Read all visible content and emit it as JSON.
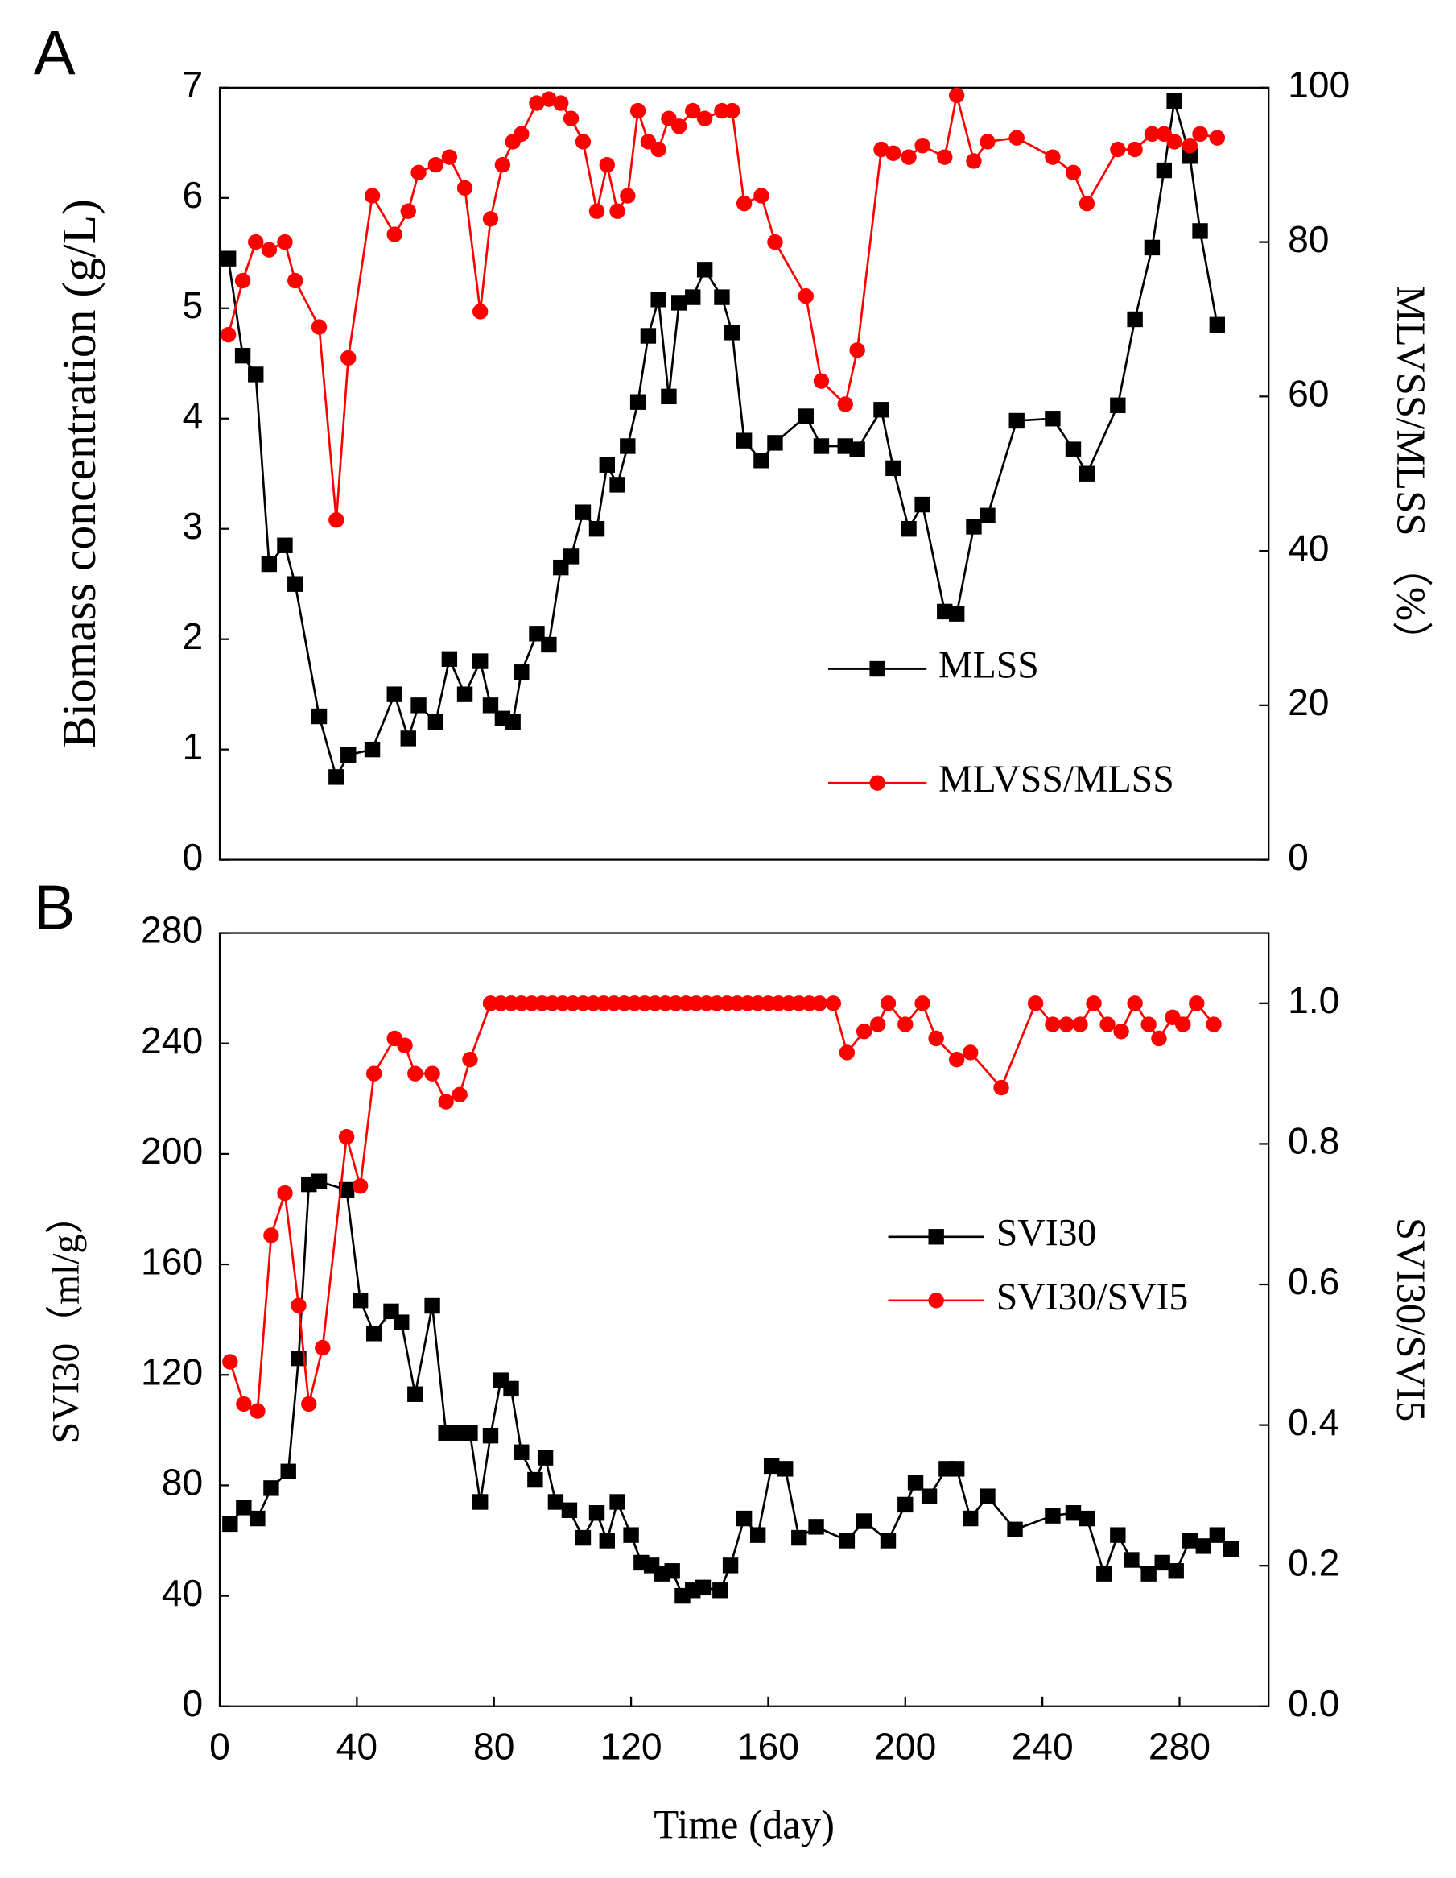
{
  "chart_data": [
    {
      "type": "line",
      "panel": "A",
      "ylabel": "Biomass concentration (g/L)",
      "y2label": "MLVSS/MLSS （%）",
      "xlim": [
        0,
        306
      ],
      "ylim": [
        0,
        7
      ],
      "yticks": [
        0,
        1,
        2,
        3,
        4,
        5,
        6,
        7
      ],
      "y2lim": [
        0,
        100
      ],
      "y2ticks": [
        0,
        20,
        40,
        60,
        80,
        100
      ],
      "legend": "lower right",
      "x": [
        2.5,
        6.7,
        10.5,
        14.4,
        19,
        22,
        29,
        34,
        37.5,
        44.5,
        51,
        55,
        58,
        63,
        67,
        71.5,
        76,
        79,
        82.5,
        85.5,
        88,
        92.5,
        96,
        99.5,
        102.5,
        106,
        110,
        113,
        116,
        119,
        122,
        125,
        128,
        131,
        134,
        138,
        141.5,
        146.5,
        149.5,
        153,
        158,
        162,
        171,
        175.5,
        182.5,
        186,
        193,
        196.5,
        201,
        205,
        211.5,
        215,
        220,
        224,
        232.5,
        243,
        249,
        253,
        262,
        267,
        272,
        275.5,
        278.5,
        283,
        286,
        291
      ],
      "series": [
        {
          "name": "MLSS",
          "color": "#000000",
          "marker": "square",
          "values": [
            5.45,
            4.57,
            4.4,
            2.68,
            2.85,
            2.5,
            1.3,
            0.75,
            0.95,
            1.0,
            1.5,
            1.1,
            1.4,
            1.25,
            1.82,
            1.5,
            1.8,
            1.4,
            1.28,
            1.25,
            1.7,
            2.05,
            1.95,
            2.65,
            2.75,
            3.15,
            3.0,
            3.58,
            3.4,
            3.75,
            4.15,
            4.75,
            5.08,
            4.2,
            5.05,
            5.1,
            5.35,
            5.1,
            4.78,
            3.8,
            3.62,
            3.78,
            4.02,
            3.75,
            3.75,
            3.72,
            4.08,
            3.55,
            3.0,
            3.22,
            2.25,
            2.23,
            3.02,
            3.12,
            3.98,
            4.0,
            3.72,
            3.5,
            4.12,
            4.9,
            5.55,
            6.25,
            6.88,
            6.38,
            5.7,
            4.85
          ]
        },
        {
          "name": "MLVSS/MLSS",
          "color": "#ff0000",
          "marker": "circle",
          "axis": "y2",
          "values": [
            68,
            75,
            80,
            79,
            80,
            75,
            69,
            44,
            65,
            86,
            81,
            84,
            89,
            90,
            91,
            87,
            71,
            83,
            90,
            93,
            94,
            98,
            98.5,
            98,
            96,
            93,
            84,
            90,
            84,
            86,
            97,
            93,
            92,
            96,
            95,
            97,
            96,
            97,
            97,
            85,
            86,
            80,
            73,
            62,
            59,
            66,
            92,
            91.5,
            91,
            92.5,
            91,
            99,
            90.5,
            93,
            93.5,
            91,
            89,
            85,
            92,
            92,
            94,
            94,
            93,
            92.5,
            94,
            93.5
          ]
        }
      ]
    },
    {
      "type": "line",
      "panel": "B",
      "xlabel": "Time (day)",
      "ylabel": "SVI30（ml/g）",
      "y2label": "SVI30/SVI5",
      "xlim": [
        0,
        306
      ],
      "xticks": [
        0,
        40,
        80,
        120,
        160,
        200,
        240,
        280
      ],
      "ylim": [
        0,
        280
      ],
      "yticks": [
        0,
        40,
        80,
        120,
        160,
        200,
        240,
        280
      ],
      "y2lim": [
        0,
        1.1
      ],
      "y2ticks": [
        {
          "value": 0,
          "label": "0.0"
        },
        0.2,
        0.4,
        0.6,
        0.8,
        {
          "value": 1,
          "label": "1.0"
        }
      ],
      "legend": "center right",
      "series": [
        {
          "name": "SVI30",
          "color": "#000000",
          "marker": "square",
          "x": [
            3,
            7,
            11,
            15,
            20,
            23,
            26,
            29,
            37,
            41,
            45,
            50,
            53,
            57,
            62,
            66,
            70,
            73,
            76,
            79,
            82,
            85,
            88,
            92,
            95,
            98,
            102,
            106,
            110,
            113,
            116,
            120,
            123,
            126,
            129,
            132,
            135,
            138,
            141,
            146,
            149,
            153,
            157,
            161,
            165,
            169,
            174,
            183,
            188,
            195,
            200,
            203,
            207,
            212,
            215,
            219,
            224,
            232,
            243,
            249,
            253,
            258,
            262,
            266,
            271,
            275,
            279,
            283,
            287,
            291,
            295
          ],
          "values": [
            66,
            72,
            68,
            79,
            85,
            126,
            189,
            190,
            187,
            147,
            135,
            143,
            139,
            113,
            145,
            99,
            99,
            99,
            74,
            98,
            118,
            115,
            92,
            82,
            90,
            74,
            71,
            61,
            70,
            60,
            74,
            62,
            52,
            51,
            48,
            49,
            40,
            42,
            43,
            42,
            51,
            68,
            62,
            87,
            86,
            61,
            65,
            60,
            67,
            60,
            73,
            81,
            76,
            86,
            86,
            68,
            76,
            64,
            69,
            70,
            68,
            48,
            62,
            53,
            48,
            52,
            49,
            60,
            58,
            62,
            57
          ]
        },
        {
          "name": "SVI30/SVI5",
          "color": "#ff0000",
          "marker": "circle",
          "axis": "y2",
          "x": [
            3,
            7,
            11,
            15,
            19,
            23,
            26,
            30,
            37,
            41,
            45,
            51,
            54,
            57,
            62,
            66,
            70,
            73,
            79,
            82,
            85,
            88,
            91,
            94,
            97,
            100,
            103,
            106,
            109,
            112,
            115,
            118,
            121,
            124,
            127,
            130,
            133,
            136,
            139,
            142,
            145,
            148,
            151,
            154,
            157,
            160,
            163,
            166,
            169,
            172,
            175,
            179,
            183,
            188,
            192,
            195,
            200,
            205,
            209,
            215,
            219,
            228,
            238,
            243,
            247,
            251,
            255,
            259,
            263,
            267,
            271,
            274,
            278,
            281,
            285,
            290
          ],
          "values": [
            0.49,
            0.43,
            0.42,
            0.67,
            0.73,
            0.57,
            0.43,
            0.51,
            0.81,
            0.74,
            0.9,
            0.95,
            0.94,
            0.9,
            0.9,
            0.86,
            0.87,
            0.92,
            1,
            1,
            1,
            1,
            1,
            1,
            1,
            1,
            1,
            1,
            1,
            1,
            1,
            1,
            1,
            1,
            1,
            1,
            1,
            1,
            1,
            1,
            1,
            1,
            1,
            1,
            1,
            1,
            1,
            1,
            1,
            1,
            1,
            1,
            0.93,
            0.96,
            0.97,
            1,
            0.97,
            1,
            0.95,
            0.92,
            0.93,
            0.88,
            1,
            0.97,
            0.97,
            0.97,
            1,
            0.97,
            0.96,
            1,
            0.97,
            0.95,
            0.98,
            0.97,
            1,
            0.97
          ]
        }
      ]
    }
  ]
}
